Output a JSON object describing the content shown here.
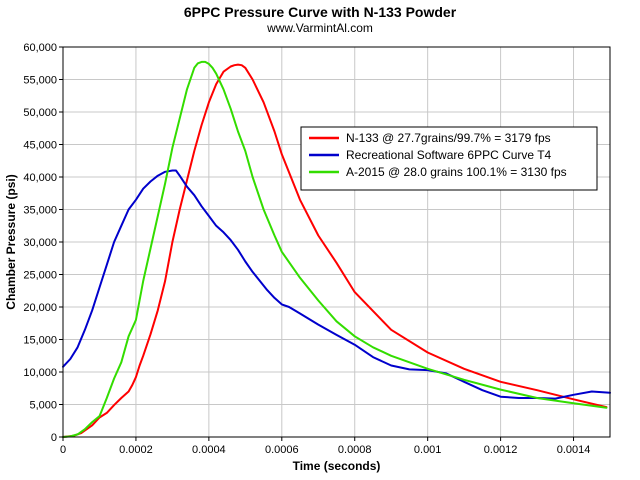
{
  "chart_data": {
    "type": "line",
    "title": "6PPC Pressure Curve with N-133 Powder",
    "subtitle": "www.VarmintAl.com",
    "xlabel": "Time (seconds)",
    "ylabel": "Chamber Pressure (psi)",
    "xlim": [
      0,
      0.0015
    ],
    "ylim": [
      0,
      60000
    ],
    "xticks": [
      0,
      0.0002,
      0.0004,
      0.0006,
      0.0008,
      0.001,
      0.0012,
      0.0014
    ],
    "xtick_labels": [
      "0",
      "0.0002",
      "0.0004",
      "0.0006",
      "0.0008",
      "0.001",
      "0.0012",
      "0.0014"
    ],
    "yticks": [
      0,
      5000,
      10000,
      15000,
      20000,
      25000,
      30000,
      35000,
      40000,
      45000,
      50000,
      55000,
      60000
    ],
    "ytick_labels": [
      "0",
      "5,000",
      "10,000",
      "15,000",
      "20,000",
      "25,000",
      "30,000",
      "35,000",
      "40,000",
      "45,000",
      "50,000",
      "55,000",
      "60,000"
    ],
    "grid": true,
    "legend_position": "right",
    "series": [
      {
        "name": "N-133 @ 27.7grains/99.7% = 3179 fps",
        "color": "#ff0000",
        "x": [
          0,
          3e-05,
          5e-05,
          8e-05,
          0.0001,
          0.00012,
          0.00014,
          0.00016,
          0.00018,
          0.00019,
          0.0002,
          0.00021,
          0.00022,
          0.00024,
          0.00026,
          0.00028,
          0.0003,
          0.00032,
          0.00034,
          0.00036,
          0.00038,
          0.0004,
          0.00042,
          0.00044,
          0.00046,
          0.00047,
          0.00048,
          0.00049,
          0.0005,
          0.00052,
          0.00055,
          0.00058,
          0.0006,
          0.00065,
          0.0007,
          0.00075,
          0.0008,
          0.0009,
          0.001,
          0.0011,
          0.0012,
          0.0013,
          0.0014,
          0.00149
        ],
        "y": [
          0,
          200,
          600,
          1800,
          3000,
          3700,
          4900,
          6000,
          7000,
          8000,
          9200,
          11000,
          12500,
          15800,
          19500,
          24000,
          30000,
          35000,
          39500,
          44000,
          48000,
          51500,
          54300,
          56200,
          57000,
          57200,
          57300,
          57200,
          56800,
          55000,
          51500,
          47000,
          43500,
          36500,
          31000,
          26800,
          22300,
          16500,
          13000,
          10500,
          8500,
          7200,
          5800,
          4600
        ]
      },
      {
        "name": "Recreational Software 6PPC Curve T4",
        "color": "#0000cc",
        "x": [
          0,
          2e-05,
          4e-05,
          6e-05,
          8e-05,
          0.0001,
          0.00012,
          0.00014,
          0.00016,
          0.00018,
          0.0002,
          0.00022,
          0.00024,
          0.00026,
          0.00028,
          0.0003,
          0.00031,
          0.00032,
          0.00034,
          0.00036,
          0.00038,
          0.0004,
          0.00042,
          0.00044,
          0.00046,
          0.00048,
          0.0005,
          0.00052,
          0.00054,
          0.00056,
          0.00058,
          0.0006,
          0.00062,
          0.00065,
          0.0007,
          0.00075,
          0.0008,
          0.00085,
          0.0009,
          0.00095,
          0.001,
          0.00105,
          0.0011,
          0.00115,
          0.0012,
          0.00125,
          0.0013,
          0.00135,
          0.0014,
          0.00145,
          0.0015
        ],
        "y": [
          10800,
          12000,
          13800,
          16500,
          19500,
          23000,
          26500,
          30000,
          32500,
          35000,
          36500,
          38200,
          39300,
          40200,
          40800,
          41000,
          41000,
          40200,
          38500,
          37200,
          35500,
          34000,
          32500,
          31500,
          30300,
          28800,
          27000,
          25400,
          24000,
          22600,
          21400,
          20400,
          20000,
          19000,
          17300,
          15700,
          14200,
          12300,
          11000,
          10400,
          10300,
          9800,
          8500,
          7200,
          6200,
          6000,
          6000,
          5900,
          6500,
          7000,
          6800
        ]
      },
      {
        "name": "A-2015  @ 28.0 grains 100.1% = 3130 fps",
        "color": "#33dd00",
        "x": [
          0,
          2e-05,
          4e-05,
          6e-05,
          8e-05,
          0.0001,
          0.00012,
          0.00014,
          0.00016,
          0.00018,
          0.0002,
          0.00022,
          0.00024,
          0.00026,
          0.00028,
          0.0003,
          0.00032,
          0.00034,
          0.00036,
          0.00037,
          0.00038,
          0.00039,
          0.0004,
          0.00041,
          0.00042,
          0.00044,
          0.00046,
          0.00048,
          0.0005,
          0.00052,
          0.00055,
          0.00058,
          0.0006,
          0.00065,
          0.0007,
          0.00075,
          0.0008,
          0.00085,
          0.0009,
          0.001,
          0.0011,
          0.0012,
          0.0013,
          0.0014,
          0.00149
        ],
        "y": [
          0,
          100,
          400,
          1200,
          2300,
          3200,
          6000,
          9000,
          11500,
          15500,
          18000,
          24000,
          29000,
          34000,
          39000,
          44500,
          49000,
          53500,
          56800,
          57500,
          57700,
          57700,
          57400,
          56800,
          55900,
          53500,
          50500,
          47000,
          44000,
          40000,
          35000,
          31000,
          28500,
          24500,
          21000,
          17800,
          15500,
          13800,
          12500,
          10500,
          8800,
          7300,
          6000,
          5200,
          4500
        ]
      }
    ]
  }
}
